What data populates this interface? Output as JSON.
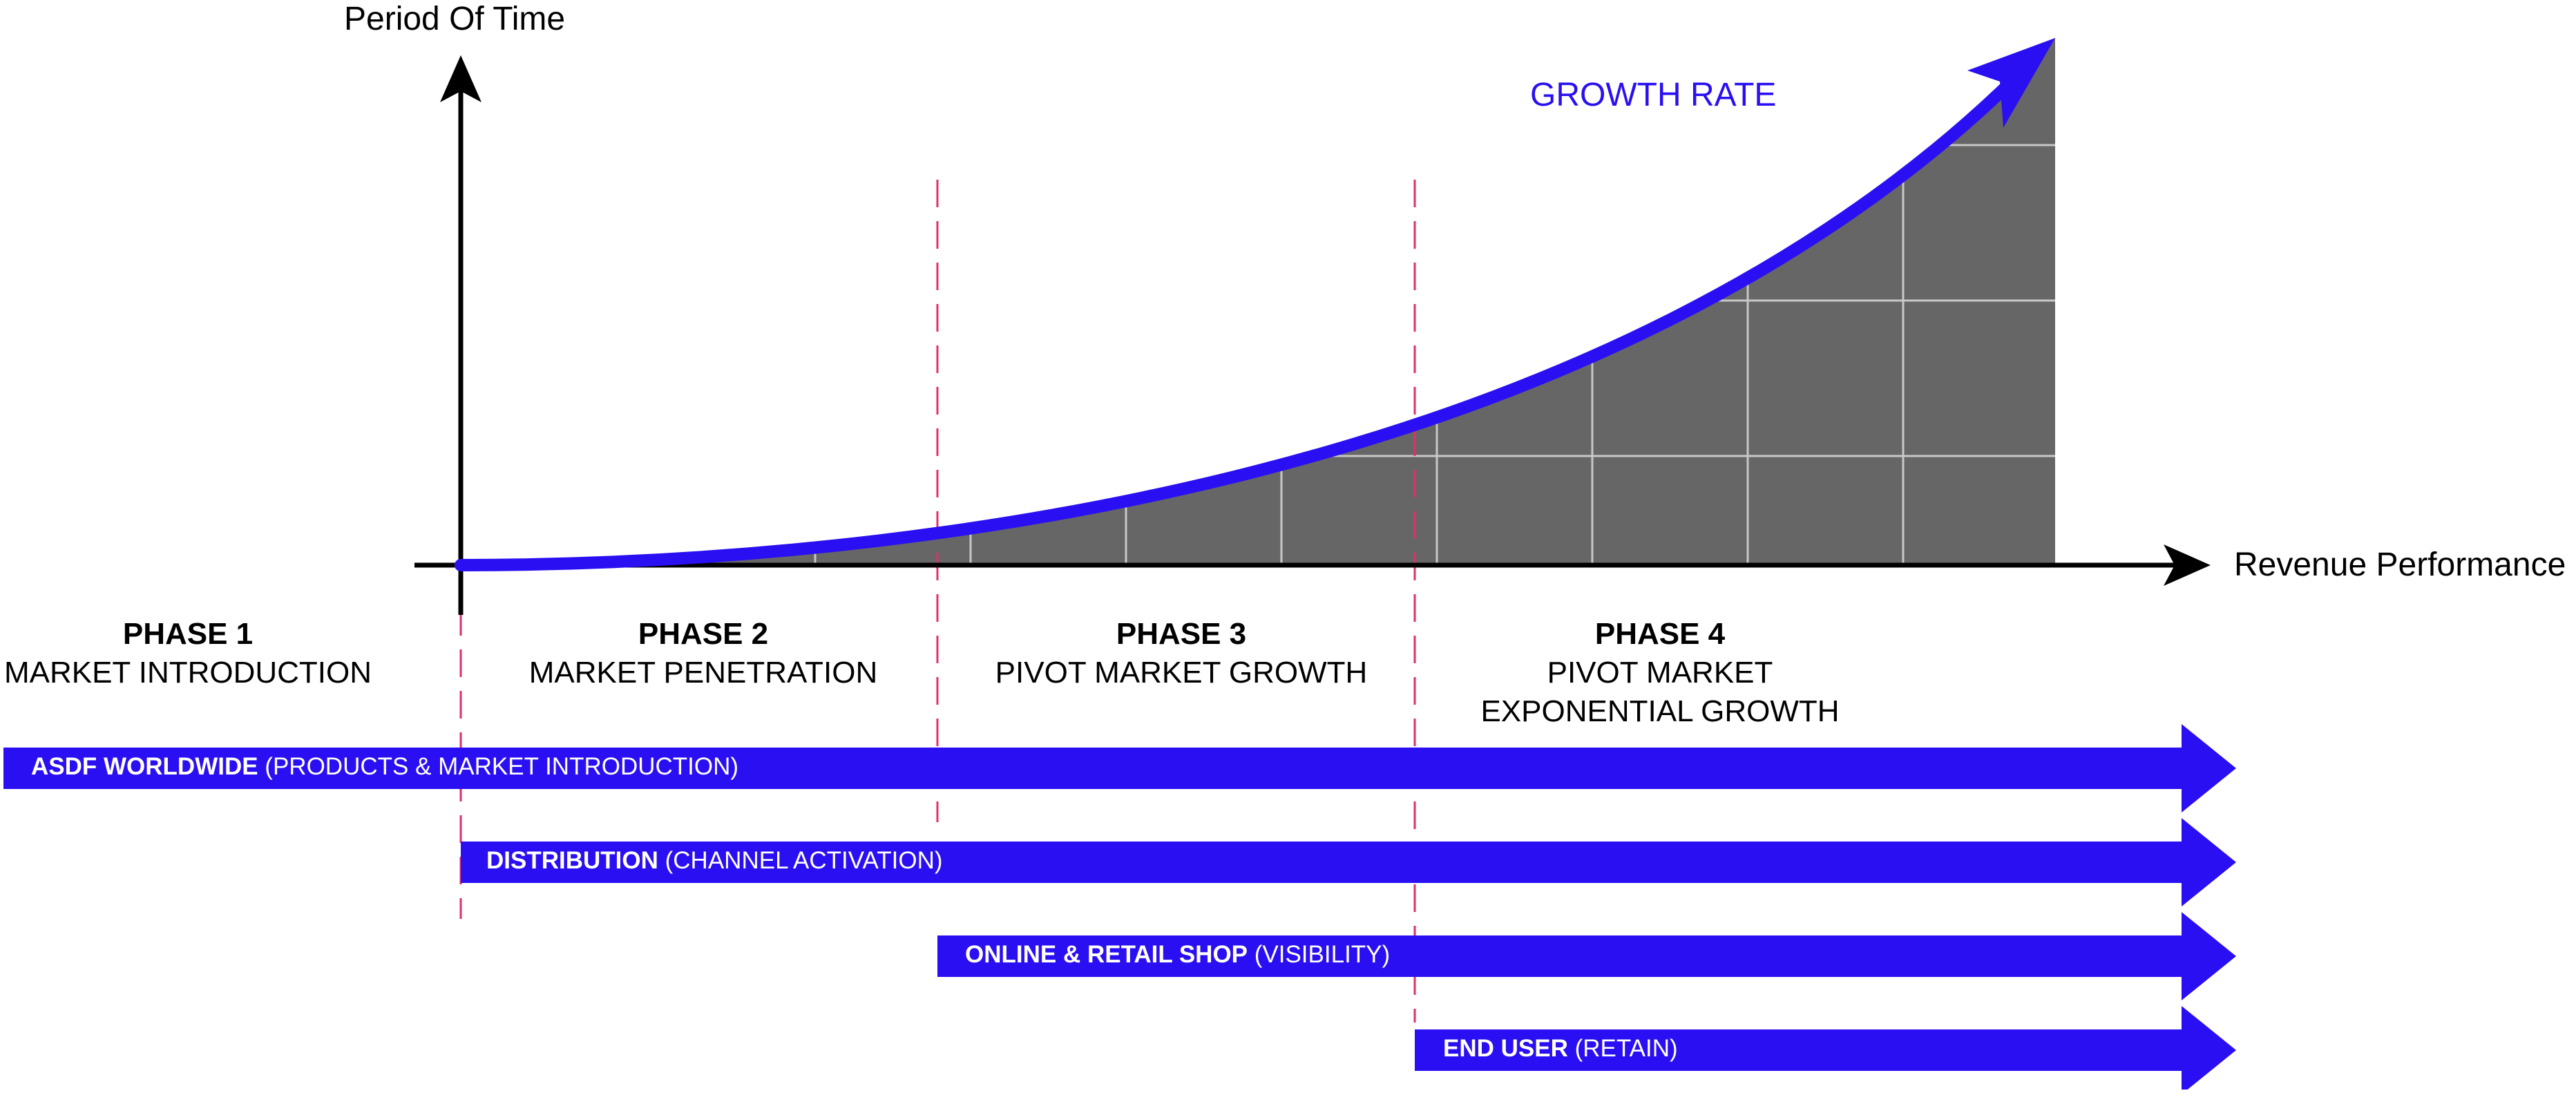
{
  "axes": {
    "y_label": "Period Of Time",
    "x_label": "Revenue Performance"
  },
  "growth_label": "GROWTH RATE",
  "phases": [
    {
      "title": "PHASE 1",
      "lines": [
        "MARKET INTRODUCTION"
      ]
    },
    {
      "title": "PHASE 2",
      "lines": [
        "MARKET PENETRATION"
      ]
    },
    {
      "title": "PHASE 3",
      "lines": [
        "PIVOT MARKET GROWTH"
      ]
    },
    {
      "title": "PHASE 4",
      "lines": [
        "PIVOT MARKET",
        "EXPONENTIAL GROWTH"
      ]
    }
  ],
  "bars": [
    {
      "bold": "ASDF WORLDWIDE",
      "rest": " (PRODUCTS & MARKET INTRODUCTION)"
    },
    {
      "bold": "DISTRIBUTION",
      "rest": " (CHANNEL ACTIVATION)"
    },
    {
      "bold": "ONLINE & RETAIL SHOP",
      "rest": " (VISIBILITY)"
    },
    {
      "bold": "END USER",
      "rest": " (RETAIN)"
    }
  ],
  "colors": {
    "accent": "#2a0ff2",
    "area": "#666666",
    "grid": "#c8c8c8",
    "divider": "#e0306a",
    "axis": "#000000"
  }
}
